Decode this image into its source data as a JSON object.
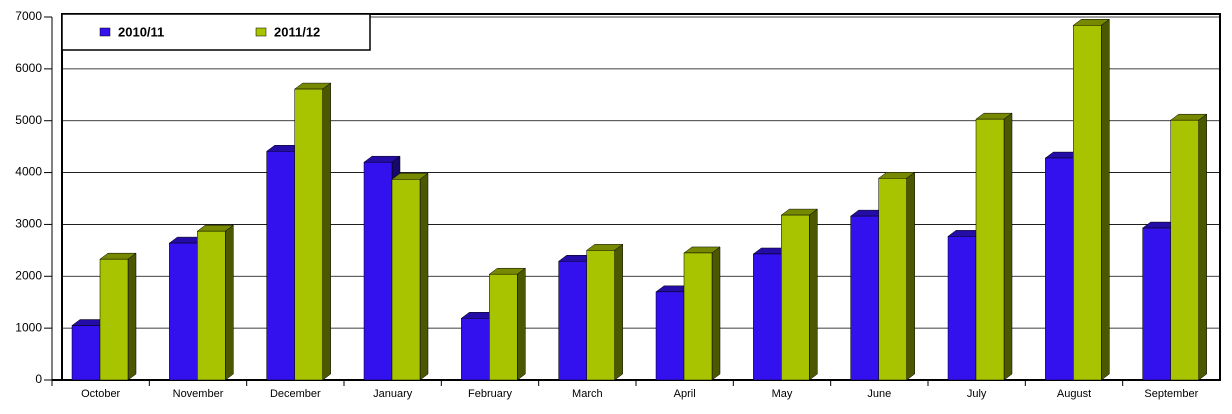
{
  "chart_data": {
    "type": "bar3d",
    "categories": [
      "October",
      "November",
      "December",
      "January",
      "February",
      "March",
      "April",
      "May",
      "June",
      "July",
      "August",
      "September"
    ],
    "series": [
      {
        "name": "2010/11",
        "color": "#3311ee",
        "values": [
          1050,
          2640,
          4410,
          4200,
          1190,
          2290,
          1700,
          2430,
          3160,
          2770,
          4280,
          2930
        ]
      },
      {
        "name": "2011/12",
        "color": "#a8c400",
        "values": [
          2330,
          2870,
          5610,
          3870,
          2040,
          2500,
          2450,
          3180,
          3890,
          5030,
          6840,
          5010
        ]
      }
    ],
    "ylim": [
      0,
      7000
    ],
    "yticks": [
      0,
      1000,
      2000,
      3000,
      4000,
      5000,
      6000,
      7000
    ],
    "grid": true,
    "legend": "top-left"
  }
}
